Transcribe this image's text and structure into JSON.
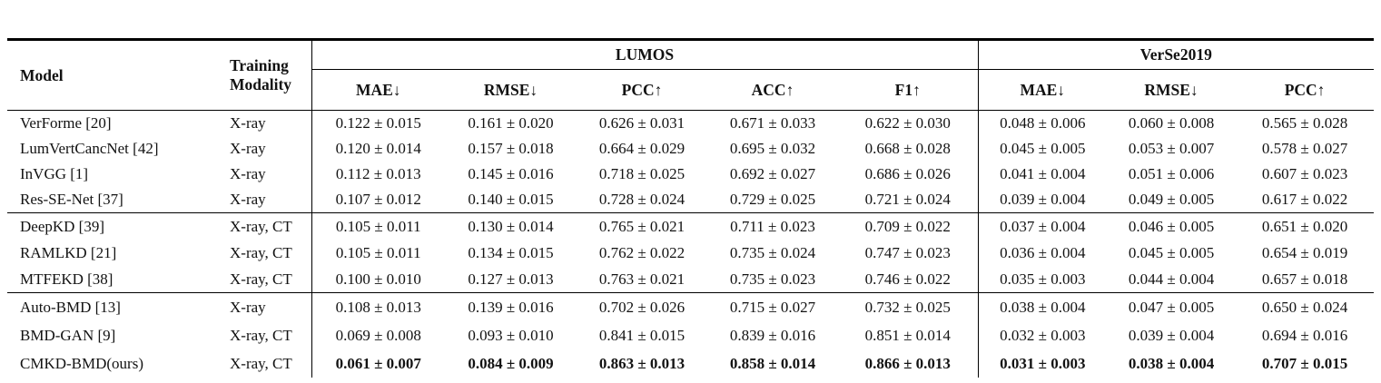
{
  "table": {
    "headers": {
      "model": "Model",
      "modality": "Training Modality",
      "lumos": "LUMOS",
      "verse": "VerSe2019",
      "lumos_metrics": [
        "MAE↓",
        "RMSE↓",
        "PCC↑",
        "ACC↑",
        "F1↑"
      ],
      "verse_metrics": [
        "MAE↓",
        "RMSE↓",
        "PCC↑"
      ]
    },
    "groups": [
      {
        "rows": [
          {
            "model": "VerForme [20]",
            "modality": "X-ray",
            "bold": false,
            "lumos": [
              "0.122 ± 0.015",
              "0.161 ± 0.020",
              "0.626 ± 0.031",
              "0.671 ± 0.033",
              "0.622 ± 0.030"
            ],
            "verse": [
              "0.048 ± 0.006",
              "0.060 ± 0.008",
              "0.565 ± 0.028"
            ]
          },
          {
            "model": "LumVertCancNet [42]",
            "modality": "X-ray",
            "bold": false,
            "lumos": [
              "0.120 ± 0.014",
              "0.157 ± 0.018",
              "0.664 ± 0.029",
              "0.695 ± 0.032",
              "0.668 ± 0.028"
            ],
            "verse": [
              "0.045 ± 0.005",
              "0.053 ± 0.007",
              "0.578 ± 0.027"
            ]
          },
          {
            "model": "InVGG [1]",
            "modality": "X-ray",
            "bold": false,
            "lumos": [
              "0.112 ± 0.013",
              "0.145 ± 0.016",
              "0.718 ± 0.025",
              "0.692 ± 0.027",
              "0.686 ± 0.026"
            ],
            "verse": [
              "0.041 ± 0.004",
              "0.051 ± 0.006",
              "0.607 ± 0.023"
            ]
          },
          {
            "model": "Res-SE-Net [37]",
            "modality": "X-ray",
            "bold": false,
            "lumos": [
              "0.107 ± 0.012",
              "0.140 ± 0.015",
              "0.728 ± 0.024",
              "0.729 ± 0.025",
              "0.721 ± 0.024"
            ],
            "verse": [
              "0.039 ± 0.004",
              "0.049 ± 0.005",
              "0.617 ± 0.022"
            ]
          }
        ]
      },
      {
        "rows": [
          {
            "model": "DeepKD [39]",
            "modality": "X-ray, CT",
            "bold": false,
            "lumos": [
              "0.105 ± 0.011",
              "0.130 ± 0.014",
              "0.765 ± 0.021",
              "0.711 ± 0.023",
              "0.709 ± 0.022"
            ],
            "verse": [
              "0.037 ± 0.004",
              "0.046 ± 0.005",
              "0.651 ± 0.020"
            ]
          },
          {
            "model": "RAMLKD [21]",
            "modality": "X-ray, CT",
            "bold": false,
            "lumos": [
              "0.105 ± 0.011",
              "0.134 ± 0.015",
              "0.762 ± 0.022",
              "0.735 ± 0.024",
              "0.747 ± 0.023"
            ],
            "verse": [
              "0.036 ± 0.004",
              "0.045 ± 0.005",
              "0.654 ± 0.019"
            ]
          },
          {
            "model": "MTFEKD [38]",
            "modality": "X-ray, CT",
            "bold": false,
            "lumos": [
              "0.100 ± 0.010",
              "0.127 ± 0.013",
              "0.763 ± 0.021",
              "0.735 ± 0.023",
              "0.746 ± 0.022"
            ],
            "verse": [
              "0.035 ± 0.003",
              "0.044 ± 0.004",
              "0.657 ± 0.018"
            ]
          }
        ]
      },
      {
        "rows": [
          {
            "model": "Auto-BMD [13]",
            "modality": "X-ray",
            "bold": false,
            "lumos": [
              "0.108 ± 0.013",
              "0.139 ± 0.016",
              "0.702 ± 0.026",
              "0.715 ± 0.027",
              "0.732 ± 0.025"
            ],
            "verse": [
              "0.038 ± 0.004",
              "0.047 ± 0.005",
              "0.650 ± 0.024"
            ]
          },
          {
            "model": "BMD-GAN [9]",
            "modality": "X-ray, CT",
            "bold": false,
            "lumos": [
              "0.069 ± 0.008",
              "0.093 ± 0.010",
              "0.841 ± 0.015",
              "0.839 ± 0.016",
              "0.851 ± 0.014"
            ],
            "verse": [
              "0.032 ± 0.003",
              "0.039 ± 0.004",
              "0.694 ± 0.016"
            ]
          },
          {
            "model": "CMKD-BMD(ours)",
            "modality": "X-ray, CT",
            "bold": true,
            "lumos": [
              "0.061 ± 0.007",
              "0.084 ± 0.009",
              "0.863 ± 0.013",
              "0.858 ± 0.014",
              "0.866 ± 0.013"
            ],
            "verse": [
              "0.031 ± 0.003",
              "0.038 ± 0.004",
              "0.707 ± 0.015"
            ]
          }
        ]
      }
    ]
  }
}
